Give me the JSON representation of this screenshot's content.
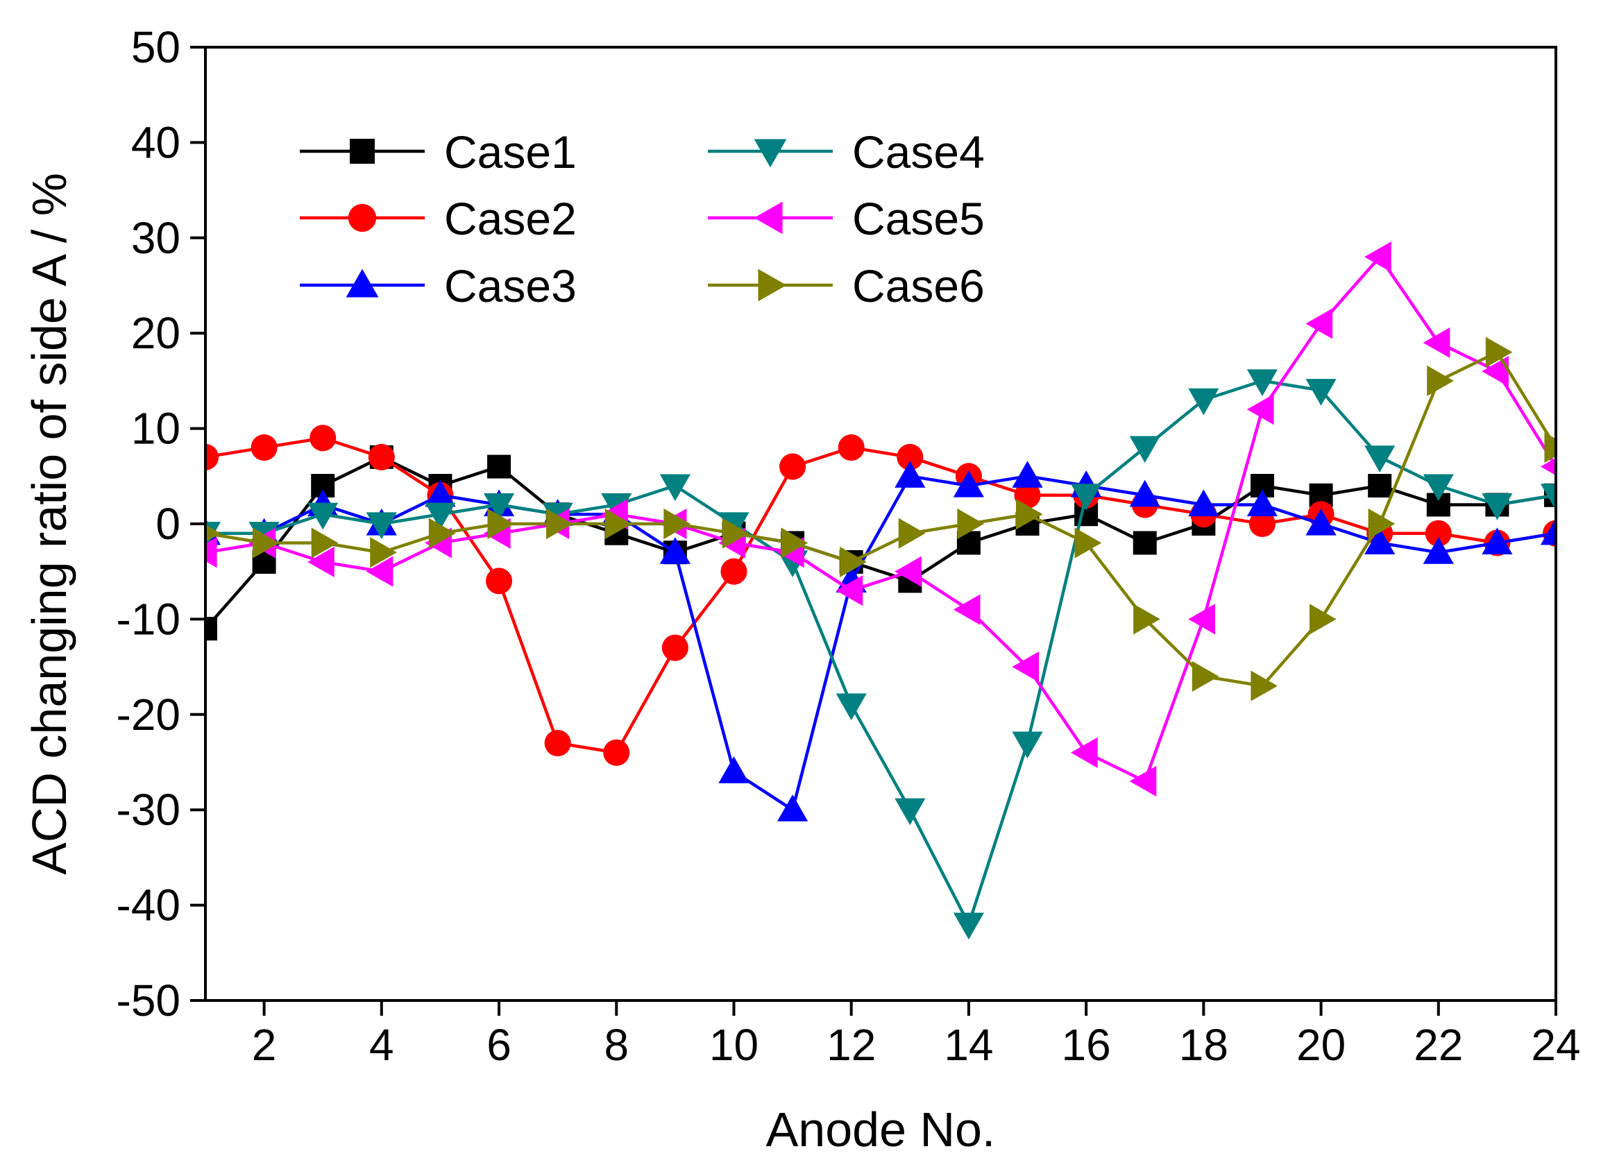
{
  "chart_data": {
    "type": "line",
    "title": "",
    "xlabel": "Anode No.",
    "ylabel": "ACD changing ratio of side A / %",
    "xlim": [
      1,
      24
    ],
    "ylim": [
      -50,
      50
    ],
    "xticks": [
      2,
      4,
      6,
      8,
      10,
      12,
      14,
      16,
      18,
      20,
      22,
      24
    ],
    "yticks": [
      -50,
      -40,
      -30,
      -20,
      -10,
      0,
      10,
      20,
      30,
      40,
      50
    ],
    "grid": false,
    "legend_position": "top-left",
    "x": [
      1,
      2,
      3,
      4,
      5,
      6,
      7,
      8,
      9,
      10,
      11,
      12,
      13,
      14,
      15,
      16,
      17,
      18,
      19,
      20,
      21,
      22,
      23,
      24
    ],
    "series": [
      {
        "name": "Case1",
        "color": "#000000",
        "marker": "square",
        "values": [
          -11,
          -4,
          4,
          7,
          4,
          6,
          1,
          -1,
          -3,
          -1,
          -2,
          -4,
          -6,
          -2,
          0,
          1,
          -2,
          0,
          4,
          3,
          4,
          2,
          2,
          3
        ]
      },
      {
        "name": "Case2",
        "color": "#ff0000",
        "marker": "circle",
        "values": [
          7,
          8,
          9,
          7,
          3,
          -6,
          -23,
          -24,
          -13,
          -5,
          6,
          8,
          7,
          5,
          3,
          3,
          2,
          1,
          0,
          1,
          -1,
          -1,
          -2,
          -1
        ]
      },
      {
        "name": "Case3",
        "color": "#0000ff",
        "marker": "triangle-up",
        "values": [
          -1,
          -1,
          2,
          0,
          3,
          2,
          1,
          1,
          -3,
          -26,
          -30,
          -6,
          5,
          4,
          5,
          4,
          3,
          2,
          2,
          0,
          -2,
          -3,
          -2,
          -1
        ]
      },
      {
        "name": "Case4",
        "color": "#008080",
        "marker": "triangle-down",
        "values": [
          -1,
          -1,
          1,
          0,
          1,
          2,
          1,
          2,
          4,
          0,
          -4,
          -19,
          -30,
          -42,
          -23,
          3,
          8,
          13,
          15,
          14,
          7,
          4,
          2,
          3
        ]
      },
      {
        "name": "Case5",
        "color": "#ff00ff",
        "marker": "triangle-left",
        "values": [
          -3,
          -2,
          -4,
          -5,
          -2,
          -1,
          0,
          1,
          0,
          -2,
          -3,
          -7,
          -5,
          -9,
          -15,
          -24,
          -27,
          -10,
          12,
          21,
          28,
          19,
          16,
          6
        ]
      },
      {
        "name": "Case6",
        "color": "#808000",
        "marker": "triangle-right",
        "values": [
          -1,
          -2,
          -2,
          -3,
          -1,
          0,
          0,
          0,
          0,
          -1,
          -2,
          -4,
          -1,
          0,
          1,
          -2,
          -10,
          -16,
          -17,
          -10,
          0,
          15,
          18,
          8
        ]
      }
    ]
  }
}
